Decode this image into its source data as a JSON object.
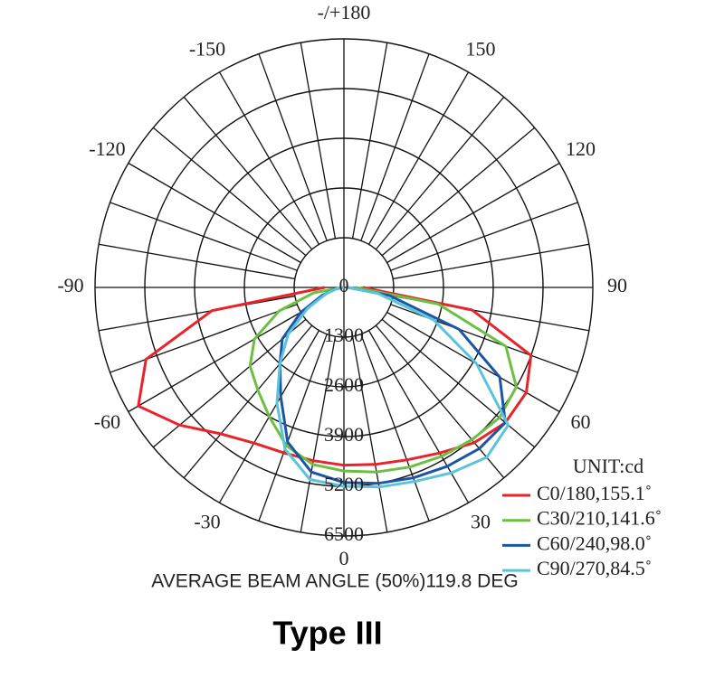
{
  "chart_data": {
    "type": "polar",
    "title": "Type III",
    "subtitle": "AVERAGE BEAM ANGLE (50%)119.8 DEG",
    "unit_label": "UNIT:cd",
    "theta": [
      -90,
      -80,
      -70,
      -60,
      -50,
      -40,
      -30,
      -20,
      -10,
      0,
      10,
      20,
      30,
      40,
      50,
      60,
      70,
      80,
      90
    ],
    "rlim": [
      0,
      6500
    ],
    "rticks": [
      0,
      1300,
      2600,
      3900,
      5200,
      6500
    ],
    "thetaticks": [
      0,
      30,
      60,
      90,
      120,
      150,
      {
        "value": 180,
        "label": "-/+180"
      },
      -150,
      -120,
      -90,
      -60,
      -30
    ],
    "series": [
      {
        "name": "C0/180,155.1˚",
        "color": "#e8232a",
        "values": [
          500,
          3500,
          5500,
          6200,
          5600,
          5000,
          4700,
          4600,
          4600,
          4650,
          4700,
          4800,
          5000,
          5300,
          5500,
          5500,
          5200,
          3400,
          500
        ]
      },
      {
        "name": "C30/210,141.6˚",
        "color": "#6cbf43",
        "values": [
          0,
          800,
          1800,
          2700,
          3200,
          3500,
          3900,
          4400,
          4700,
          4800,
          4900,
          5000,
          5100,
          5200,
          5300,
          5200,
          4500,
          2500,
          300
        ]
      },
      {
        "name": "C60/240,98.0˚",
        "color": "#1c55a6",
        "values": [
          0,
          200,
          600,
          1300,
          2100,
          2600,
          3300,
          4300,
          4900,
          5100,
          5200,
          5300,
          5400,
          5500,
          5500,
          4700,
          3200,
          1200,
          100
        ]
      },
      {
        "name": "C90/270,84.5˚",
        "color": "#5bc3da",
        "values": [
          0,
          200,
          500,
          1100,
          1900,
          2600,
          3500,
          4500,
          5100,
          5200,
          5300,
          5400,
          5600,
          5800,
          5600,
          4000,
          2500,
          900,
          100
        ]
      }
    ]
  }
}
